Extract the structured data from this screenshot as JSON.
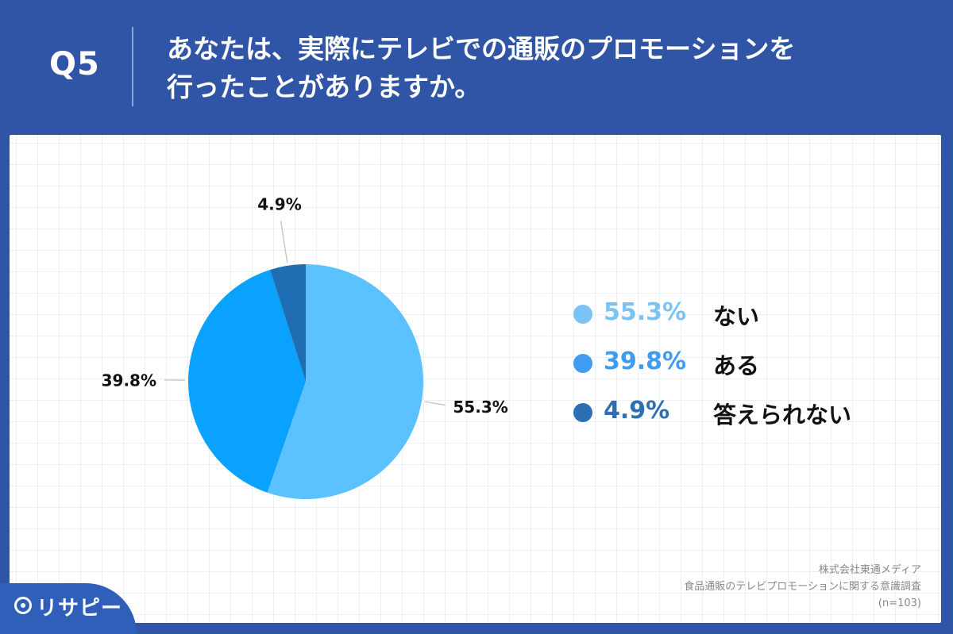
{
  "header": {
    "q_number": "Q5",
    "title_line1": "あなたは、実際にテレビでの通販のプロモーションを",
    "title_line2": "行ったことがありますか。"
  },
  "chart_data": {
    "type": "pie",
    "title": "あなたは、実際にテレビでの通販のプロモーションを行ったことがありますか。",
    "slices": [
      {
        "label": "ない",
        "value": 55.3,
        "display": "55.3%",
        "color": "#5bc2ff"
      },
      {
        "label": "ある",
        "value": 39.8,
        "display": "39.8%",
        "color": "#0aa1ff"
      },
      {
        "label": "答えられない",
        "value": 4.9,
        "display": "4.9%",
        "color": "#1f6eb3"
      }
    ],
    "legend_position": "right",
    "start_angle_deg": 0,
    "direction": "clockwise"
  },
  "legend": {
    "colors": [
      "#7cc3f5",
      "#3f9cf0",
      "#2d6fb3"
    ]
  },
  "source": {
    "company": "株式会社東通メディア",
    "survey": "食品通販のテレビプロモーションに関する意識調査",
    "sample": "(n=103)"
  },
  "logo": {
    "name": "リサピー"
  }
}
